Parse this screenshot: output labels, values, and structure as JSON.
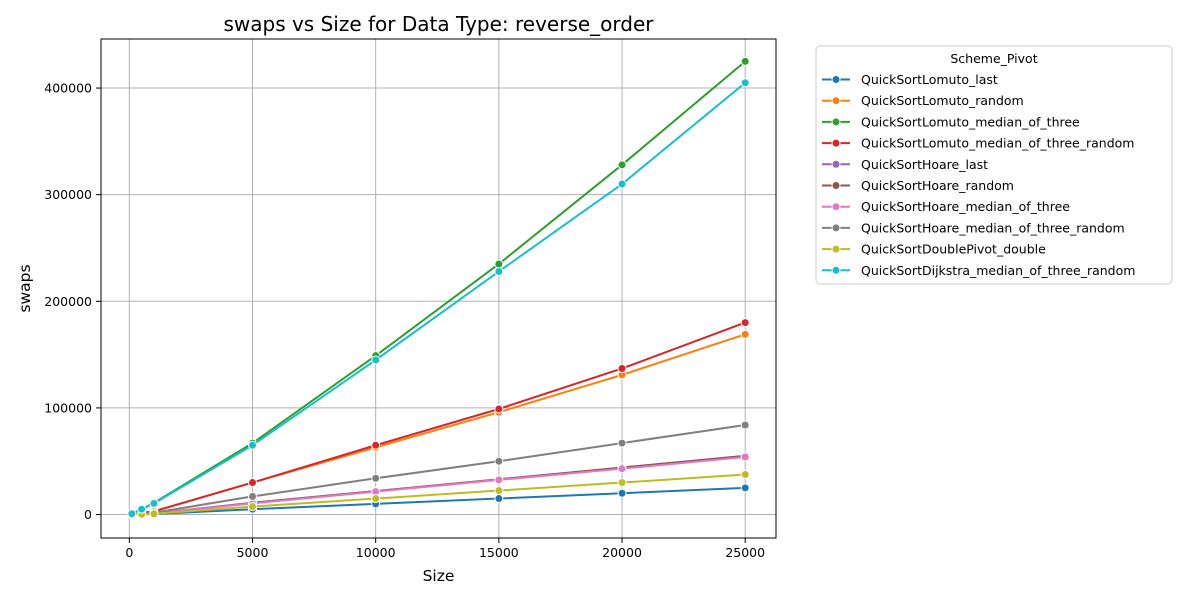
{
  "chart_data": {
    "type": "line",
    "title": "swaps vs Size for Data Type: reverse_order",
    "xlabel": "Size",
    "ylabel": "swaps",
    "xlim": [
      -1150,
      26250
    ],
    "ylim": [
      -22000,
      446000
    ],
    "xticks": [
      0,
      5000,
      10000,
      15000,
      20000,
      25000
    ],
    "xtick_labels": [
      "0",
      "5000",
      "10000",
      "15000",
      "20000",
      "25000"
    ],
    "yticks": [
      0,
      100000,
      200000,
      300000,
      400000
    ],
    "ytick_labels": [
      "0",
      "100000",
      "200000",
      "300000",
      "400000"
    ],
    "grid": true,
    "legend": {
      "title": "Scheme_Pivot",
      "placement": "outside-top-right"
    },
    "x": [
      100,
      500,
      1000,
      5000,
      10000,
      15000,
      20000,
      25000
    ],
    "series": [
      {
        "name": "QuickSortLomuto_last",
        "color": "#1f77b4",
        "values": [
          50,
          250,
          500,
          5000,
          10000,
          15000,
          20000,
          25000
        ]
      },
      {
        "name": "QuickSortLomuto_random",
        "color": "#ff7f0e",
        "values": [
          300,
          1500,
          3000,
          30000,
          63000,
          96000,
          131000,
          169000
        ]
      },
      {
        "name": "QuickSortLomuto_median_of_three",
        "color": "#2ca02c",
        "values": [
          800,
          5000,
          11000,
          67000,
          149000,
          235000,
          328000,
          425000
        ]
      },
      {
        "name": "QuickSortLomuto_median_of_three_random",
        "color": "#d62728",
        "values": [
          300,
          1500,
          3000,
          30000,
          65000,
          99000,
          137000,
          180000
        ]
      },
      {
        "name": "QuickSortHoare_last",
        "color": "#9467bd",
        "values": [
          100,
          500,
          1000,
          11000,
          22000,
          33000,
          44000,
          55000
        ]
      },
      {
        "name": "QuickSortHoare_random",
        "color": "#8c564b",
        "values": [
          100,
          500,
          1000,
          11000,
          22000,
          33000,
          44000,
          55000
        ]
      },
      {
        "name": "QuickSortHoare_median_of_three",
        "color": "#e377c2",
        "values": [
          100,
          500,
          1000,
          10500,
          21500,
          32500,
          43000,
          54000
        ]
      },
      {
        "name": "QuickSortHoare_median_of_three_random",
        "color": "#7f7f7f",
        "values": [
          150,
          800,
          1700,
          17000,
          34000,
          50000,
          67000,
          84000
        ]
      },
      {
        "name": "QuickSortDoublePivot_double",
        "color": "#bcbd22",
        "values": [
          50,
          300,
          700,
          7500,
          15000,
          22500,
          30000,
          37500
        ]
      },
      {
        "name": "QuickSortDijkstra_median_of_three_random",
        "color": "#17becf",
        "values": [
          800,
          5000,
          10500,
          65000,
          145000,
          228000,
          310000,
          405000
        ]
      }
    ]
  }
}
